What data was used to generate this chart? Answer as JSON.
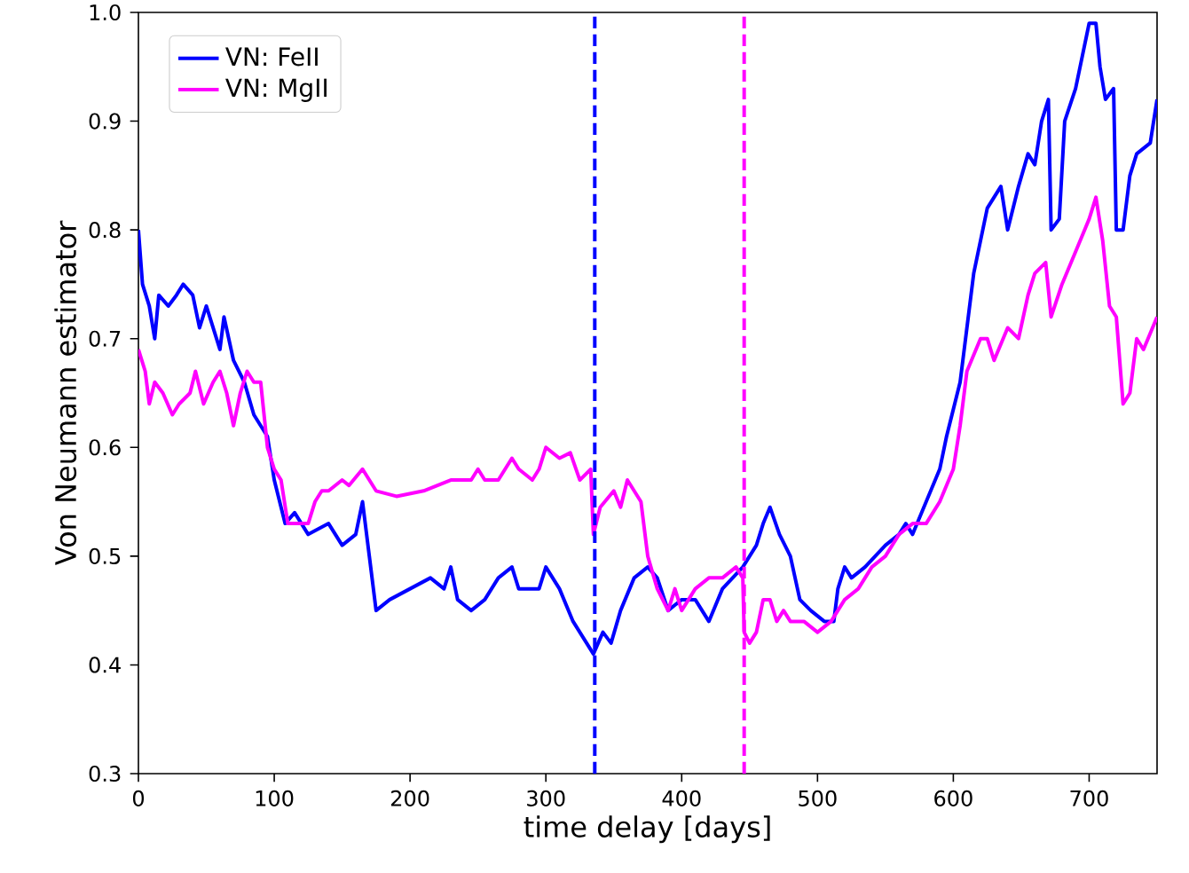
{
  "chart_data": {
    "type": "line",
    "xlabel": "time delay [days]",
    "ylabel": "Von Neumann estimator",
    "xlim": [
      0,
      750
    ],
    "ylim": [
      0.3,
      1.0
    ],
    "xticks": [
      0,
      100,
      200,
      300,
      400,
      500,
      600,
      700
    ],
    "yticks": [
      0.3,
      0.4,
      0.5,
      0.6,
      0.7,
      0.8,
      0.9,
      {
        "value": 1.0,
        "label": "1.0"
      }
    ],
    "grid": false,
    "legend": "top left",
    "marker": "none",
    "line_style": "solid",
    "ref_lines": [
      {
        "axis": "x",
        "value": 336,
        "color": "#0000ff",
        "line_style": "dashed"
      },
      {
        "axis": "x",
        "value": 446,
        "color": "#ff00ff",
        "line_style": "dashed"
      }
    ],
    "series": [
      {
        "name": "VN: FeII",
        "color": "#0000ff",
        "x": [
          0,
          3,
          8,
          12,
          15,
          22,
          28,
          33,
          40,
          45,
          50,
          60,
          63,
          70,
          78,
          85,
          90,
          95,
          100,
          108,
          115,
          125,
          140,
          150,
          160,
          165,
          170,
          175,
          185,
          200,
          215,
          225,
          230,
          235,
          245,
          255,
          265,
          275,
          280,
          295,
          300,
          310,
          320,
          330,
          335,
          342,
          348,
          355,
          365,
          375,
          382,
          390,
          400,
          410,
          420,
          430,
          445,
          455,
          460,
          465,
          472,
          480,
          487,
          495,
          505,
          512,
          515,
          520,
          525,
          535,
          550,
          560,
          565,
          570,
          580,
          590,
          595,
          605,
          615,
          625,
          635,
          640,
          648,
          655,
          660,
          665,
          670,
          672,
          678,
          682,
          690,
          695,
          700,
          705,
          708,
          712,
          718,
          720,
          725,
          730,
          735,
          745,
          750
        ],
        "values": [
          0.8,
          0.75,
          0.73,
          0.7,
          0.74,
          0.73,
          0.74,
          0.75,
          0.74,
          0.71,
          0.73,
          0.69,
          0.72,
          0.68,
          0.66,
          0.63,
          0.62,
          0.61,
          0.57,
          0.53,
          0.54,
          0.52,
          0.53,
          0.51,
          0.52,
          0.55,
          0.5,
          0.45,
          0.46,
          0.47,
          0.48,
          0.47,
          0.49,
          0.46,
          0.45,
          0.46,
          0.48,
          0.49,
          0.47,
          0.47,
          0.49,
          0.47,
          0.44,
          0.42,
          0.41,
          0.43,
          0.42,
          0.45,
          0.48,
          0.49,
          0.48,
          0.45,
          0.46,
          0.46,
          0.44,
          0.47,
          0.49,
          0.51,
          0.53,
          0.545,
          0.52,
          0.5,
          0.46,
          0.45,
          0.44,
          0.44,
          0.47,
          0.49,
          0.48,
          0.49,
          0.51,
          0.52,
          0.53,
          0.52,
          0.55,
          0.58,
          0.61,
          0.66,
          0.76,
          0.82,
          0.84,
          0.8,
          0.84,
          0.87,
          0.86,
          0.9,
          0.92,
          0.8,
          0.81,
          0.9,
          0.93,
          0.96,
          0.99,
          0.99,
          0.95,
          0.92,
          0.93,
          0.8,
          0.8,
          0.85,
          0.87,
          0.88,
          0.92
        ]
      },
      {
        "name": "VN: MgII",
        "color": "#ff00ff",
        "x": [
          0,
          5,
          8,
          12,
          18,
          25,
          30,
          38,
          42,
          48,
          55,
          60,
          65,
          70,
          75,
          80,
          85,
          90,
          95,
          100,
          105,
          110,
          125,
          130,
          135,
          140,
          150,
          155,
          165,
          175,
          190,
          210,
          230,
          245,
          250,
          255,
          265,
          275,
          280,
          290,
          295,
          300,
          310,
          318,
          325,
          333,
          335,
          340,
          350,
          355,
          360,
          370,
          375,
          382,
          390,
          395,
          400,
          410,
          420,
          430,
          440,
          445,
          446,
          450,
          455,
          460,
          465,
          470,
          475,
          480,
          490,
          500,
          510,
          520,
          530,
          540,
          550,
          560,
          570,
          580,
          590,
          600,
          605,
          610,
          620,
          625,
          630,
          640,
          648,
          655,
          660,
          668,
          672,
          680,
          690,
          700,
          705,
          710,
          715,
          720,
          725,
          730,
          735,
          740,
          750
        ],
        "values": [
          0.69,
          0.67,
          0.64,
          0.66,
          0.65,
          0.63,
          0.64,
          0.65,
          0.67,
          0.64,
          0.66,
          0.67,
          0.65,
          0.62,
          0.65,
          0.67,
          0.66,
          0.66,
          0.6,
          0.58,
          0.57,
          0.53,
          0.53,
          0.55,
          0.56,
          0.56,
          0.57,
          0.565,
          0.58,
          0.56,
          0.555,
          0.56,
          0.57,
          0.57,
          0.58,
          0.57,
          0.57,
          0.59,
          0.58,
          0.57,
          0.58,
          0.6,
          0.59,
          0.595,
          0.57,
          0.58,
          0.52,
          0.545,
          0.56,
          0.545,
          0.57,
          0.55,
          0.5,
          0.47,
          0.45,
          0.47,
          0.45,
          0.47,
          0.48,
          0.48,
          0.49,
          0.48,
          0.43,
          0.42,
          0.43,
          0.46,
          0.46,
          0.44,
          0.45,
          0.44,
          0.44,
          0.43,
          0.44,
          0.46,
          0.47,
          0.49,
          0.5,
          0.52,
          0.53,
          0.53,
          0.55,
          0.58,
          0.62,
          0.67,
          0.7,
          0.7,
          0.68,
          0.71,
          0.7,
          0.74,
          0.76,
          0.77,
          0.72,
          0.75,
          0.78,
          0.81,
          0.83,
          0.79,
          0.73,
          0.72,
          0.64,
          0.65,
          0.7,
          0.69,
          0.72
        ]
      }
    ]
  }
}
